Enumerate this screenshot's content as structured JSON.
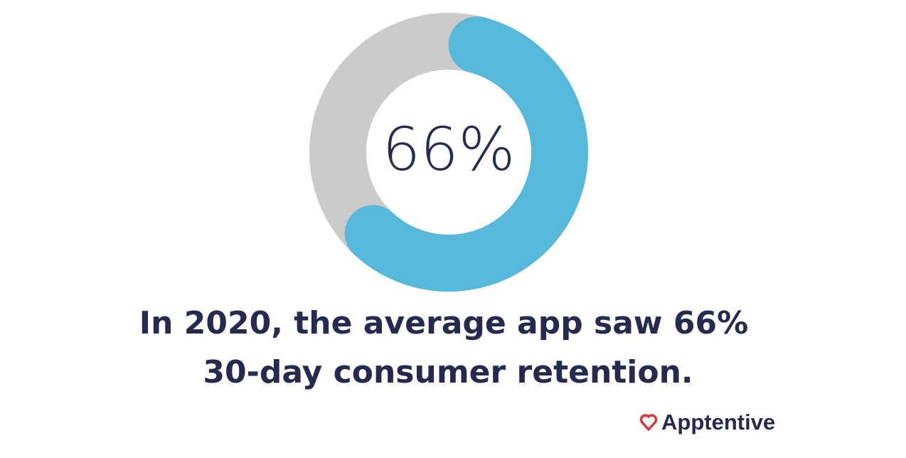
{
  "chart_data": {
    "type": "donut",
    "values": [
      66
    ],
    "value_labels": [
      "66%"
    ],
    "total": 100,
    "color": "#56b8da",
    "track_color": "#cbcbcb",
    "caption": [
      "In 2020, the average app saw 66%",
      "30-day consumer retention."
    ],
    "brand": "Apptentive"
  }
}
